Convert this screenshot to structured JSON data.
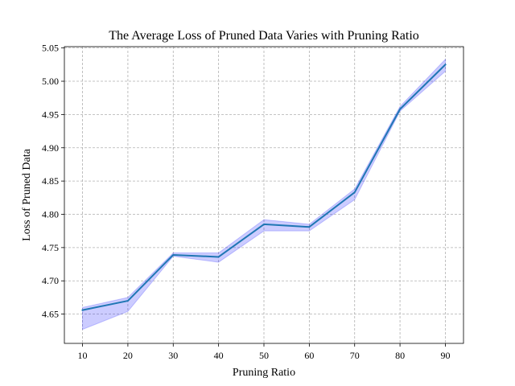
{
  "chart_data": {
    "type": "line",
    "title": "The Average Loss of Pruned Data Varies with Pruning Ratio",
    "xlabel": "Pruning Ratio",
    "ylabel": "Loss of Pruned Data",
    "x": [
      10,
      20,
      30,
      40,
      50,
      60,
      70,
      80,
      90
    ],
    "xticks": [
      10,
      20,
      30,
      40,
      50,
      60,
      70,
      80,
      90
    ],
    "yticks": [
      4.65,
      4.7,
      4.75,
      4.8,
      4.85,
      4.9,
      4.95,
      5.0,
      5.05
    ],
    "xlim": [
      6,
      94
    ],
    "ylim": [
      4.606,
      5.052
    ],
    "grid": true,
    "series": [
      {
        "values": [
          4.656,
          4.67,
          4.739,
          4.736,
          4.785,
          4.781,
          4.833,
          4.958,
          5.025
        ],
        "band_upper": [
          4.66,
          4.675,
          4.742,
          4.742,
          4.792,
          4.785,
          4.838,
          4.962,
          5.033
        ],
        "band_lower": [
          4.627,
          4.654,
          4.737,
          4.728,
          4.775,
          4.775,
          4.822,
          4.955,
          5.015
        ],
        "line_color": "#1f77b4",
        "band_color": "#0000ff"
      }
    ]
  }
}
